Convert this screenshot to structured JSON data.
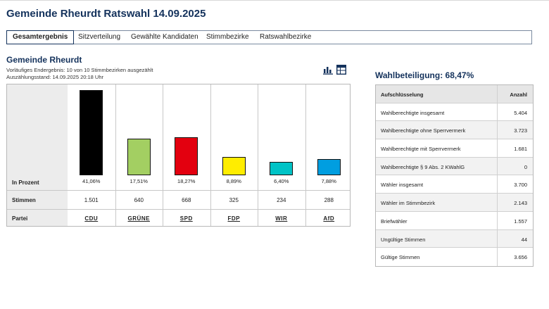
{
  "page": {
    "title": "Gemeinde Rheurdt Ratswahl 14.09.2025"
  },
  "tabs": [
    {
      "label": "Gesamtergebnis",
      "active": true
    },
    {
      "label": "Sitzverteilung",
      "active": false
    },
    {
      "label": "Gewählte Kandidaten",
      "active": false
    },
    {
      "label": "Stimmbezirke",
      "active": false
    },
    {
      "label": "Ratswahlbezirke",
      "active": false
    }
  ],
  "result": {
    "heading": "Gemeinde Rheurdt",
    "status": "Vorläufiges Endergebnis: 10 von 10 Stimmbezirken ausgezählt",
    "count_time": "Auszählungsstand: 14.09.2025 20:18 Uhr",
    "icons": [
      "bar-chart-icon",
      "table-icon"
    ],
    "row_labels": {
      "percent": "In Prozent",
      "votes": "Stimmen",
      "party": "Partei"
    }
  },
  "chart_data": {
    "type": "bar",
    "categories": [
      "CDU",
      "GRÜNE",
      "SPD",
      "FDP",
      "WIR",
      "AfD"
    ],
    "values": [
      41.06,
      17.51,
      18.27,
      8.89,
      6.4,
      7.88
    ],
    "percent_labels": [
      "41,06%",
      "17,51%",
      "18,27%",
      "8,89%",
      "6,40%",
      "7,88%"
    ],
    "votes": [
      "1.501",
      "640",
      "668",
      "325",
      "234",
      "288"
    ],
    "colors": [
      "#000000",
      "#a3cf62",
      "#e3000f",
      "#ffed00",
      "#00c3c6",
      "#009ee0"
    ]
  },
  "turnout": {
    "label": "Wahlbeteiligung: 68,47%"
  },
  "breakdown": {
    "headers": [
      "Aufschlüsselung",
      "Anzahl"
    ],
    "rows": [
      {
        "label": "Wahlberechtigte insgesamt",
        "value": "5.404"
      },
      {
        "label": "Wahlberechtigte ohne Sperrvermerk",
        "value": "3.723"
      },
      {
        "label": "Wahlberechtigte mit Sperrvermerk",
        "value": "1.681"
      },
      {
        "label": "Wahlberechtigte § 9 Abs. 2 KWahlG",
        "value": "0"
      },
      {
        "label": "Wähler insgesamt",
        "value": "3.700"
      },
      {
        "label": "Wähler im Stimmbezirk",
        "value": "2.143"
      },
      {
        "label": "Briefwähler",
        "value": "1.557"
      },
      {
        "label": "Ungültige Stimmen",
        "value": "44"
      },
      {
        "label": "Gültige Stimmen",
        "value": "3.656"
      }
    ]
  }
}
